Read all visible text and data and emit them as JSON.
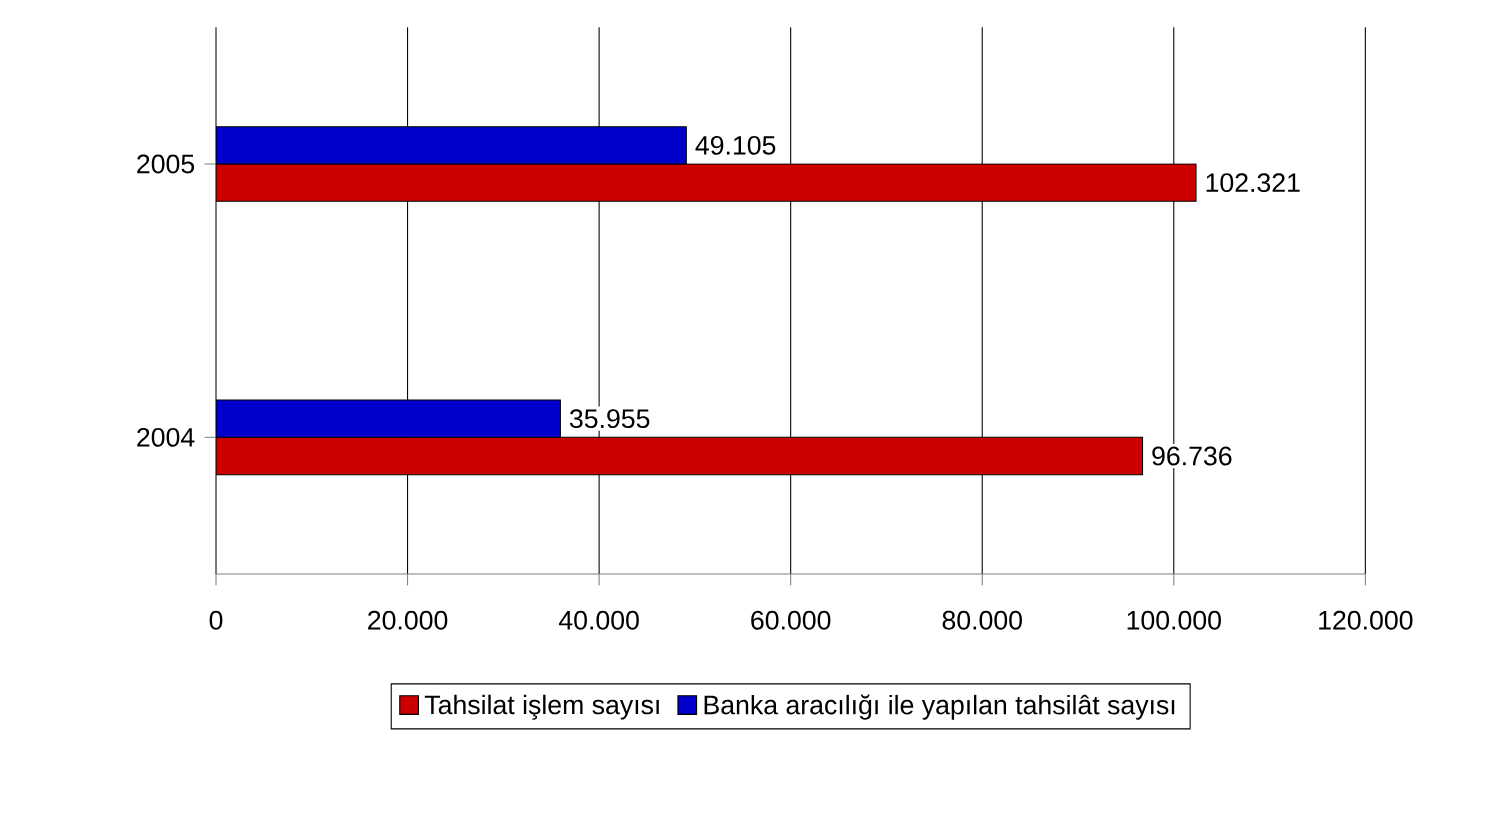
{
  "chart_data": {
    "type": "bar",
    "orientation": "horizontal",
    "categories": [
      "2005",
      "2004"
    ],
    "series": [
      {
        "name": "Tahsilat işlem sayısı",
        "color": "#cc0000",
        "values": [
          102321,
          96736
        ],
        "value_labels": [
          "102.321",
          "96.736"
        ]
      },
      {
        "name": "Banka aracılığı ile yapılan tahsilât sayısı",
        "color": "#0000cc",
        "values": [
          49105,
          35955
        ],
        "value_labels": [
          "49.105",
          "35.955"
        ]
      }
    ],
    "xlim": [
      0,
      120000
    ],
    "xticks": [
      0,
      {
        "value": 20000,
        "label": "20.000"
      },
      {
        "value": 40000,
        "label": "40.000"
      },
      {
        "value": 60000,
        "label": "60.000"
      },
      {
        "value": 80000,
        "label": "80.000"
      },
      {
        "value": 100000,
        "label": "100.000"
      },
      {
        "value": 120000,
        "label": "120.000"
      }
    ],
    "grid": "x",
    "legend": "bottom"
  }
}
